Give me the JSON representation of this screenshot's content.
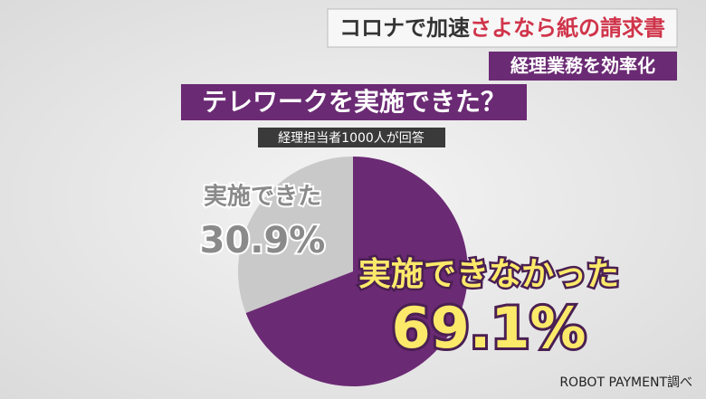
{
  "header": {
    "headline": [
      "コロナで加速",
      "さよなら紙の請求書"
    ],
    "tag": "経理業務を効率化"
  },
  "chart_data": {
    "type": "pie",
    "title": "テレワークを実施できた？",
    "subtitle": "経理担当者1000人が回答",
    "categories": [
      "実施できた",
      "実施できなかった"
    ],
    "values": [
      30.9,
      69.1
    ],
    "value_labels": [
      "30.9%",
      "69.1%"
    ],
    "colors": [
      "#c9c9c9",
      "#6b2a74"
    ]
  },
  "source": "ROBOT PAYMENT調べ"
}
